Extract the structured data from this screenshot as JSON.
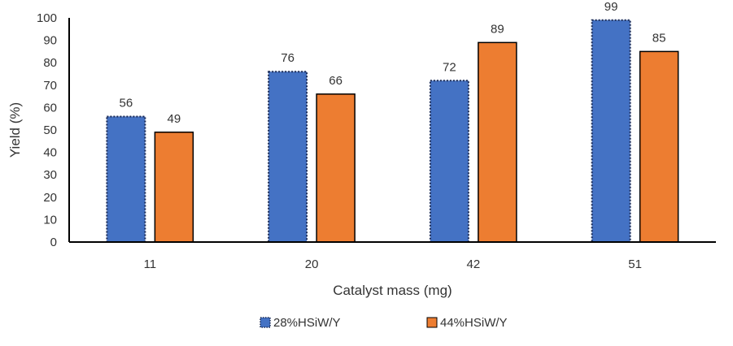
{
  "chart_data": {
    "type": "bar",
    "title": "",
    "xlabel": "Catalyst mass (mg)",
    "ylabel": "Yield (%)",
    "categories": [
      "11",
      "20",
      "42",
      "51"
    ],
    "ylim": [
      0,
      100
    ],
    "yticks": [
      0,
      10,
      20,
      30,
      40,
      50,
      60,
      70,
      80,
      90,
      100
    ],
    "grid": false,
    "legend_position": "bottom",
    "series": [
      {
        "name": "28%HSiW/Y",
        "values": [
          56,
          76,
          72,
          99
        ],
        "color": "#4472C4",
        "border": "dotted",
        "data_labels": [
          "56",
          "76",
          "72",
          "99"
        ]
      },
      {
        "name": "44%HSiW/Y",
        "values": [
          49,
          66,
          89,
          85
        ],
        "color": "#ED7D31",
        "border": "solid",
        "data_labels": [
          "49",
          "66",
          "89",
          "85"
        ]
      }
    ]
  }
}
